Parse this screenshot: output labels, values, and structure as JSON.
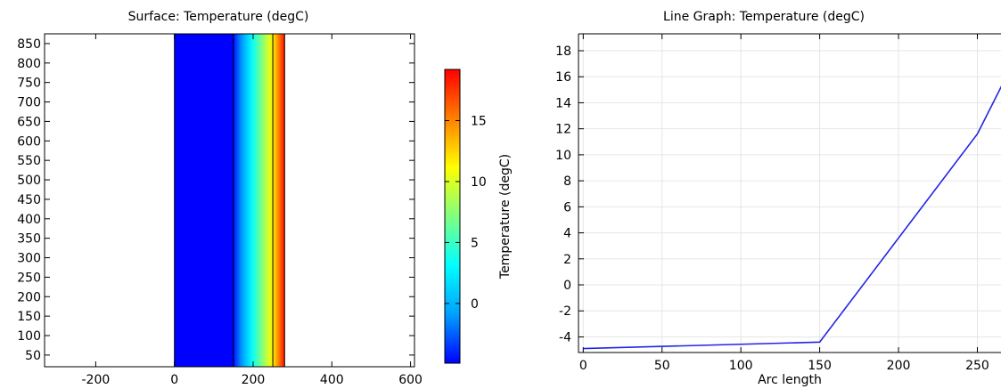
{
  "chart_data": [
    {
      "type": "heatmap",
      "title": "Surface: Temperature (degC)",
      "xlim": [
        -330,
        610
      ],
      "ylim": [
        20,
        875
      ],
      "xticks": [
        -200,
        0,
        200,
        400,
        600
      ],
      "yticks": [
        50,
        100,
        150,
        200,
        250,
        300,
        350,
        400,
        450,
        500,
        550,
        600,
        650,
        700,
        750,
        800,
        850
      ],
      "x": [
        0,
        150,
        250,
        280
      ],
      "temperature": [
        -4.9,
        -4.4,
        11.6,
        18.8
      ],
      "layer_boundaries": [
        0,
        150,
        250,
        280
      ],
      "colorbar": {
        "label": "Temperature (degC)",
        "range": [
          -4.9,
          19.2
        ],
        "ticks": [
          0,
          5,
          10,
          15
        ],
        "colormap": [
          "#0000ff",
          "#00a0ff",
          "#00ffff",
          "#80ff80",
          "#ffff00",
          "#ff8000",
          "#ff0000"
        ]
      }
    },
    {
      "type": "line",
      "title": "Line Graph: Temperature (degC)",
      "xlabel": "Arc length",
      "xlim": [
        -3,
        265
      ],
      "ylim": [
        -5.2,
        19.3
      ],
      "xticks": [
        0,
        50,
        100,
        150,
        200,
        250
      ],
      "yticks": [
        -4,
        -2,
        0,
        2,
        4,
        6,
        8,
        10,
        12,
        14,
        16,
        18
      ],
      "grid": true,
      "line_color": "#2323e6",
      "series": [
        {
          "x": [
            0,
            150,
            250,
            280
          ],
          "y": [
            -4.9,
            -4.4,
            11.6,
            18.8
          ]
        }
      ]
    }
  ]
}
